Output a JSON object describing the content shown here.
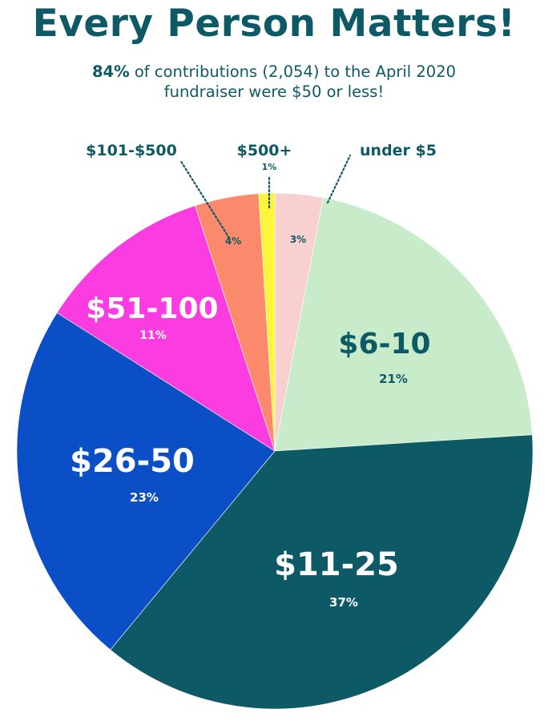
{
  "title": "Every Person Matters!",
  "subtitle": {
    "highlight": "84%",
    "line1_rest": " of contributions (2,054) to the April 2020",
    "line2": "fundraiser were $50 or less!"
  },
  "chart_data": {
    "type": "pie",
    "slices": [
      {
        "label": "under $5",
        "value": 3,
        "pct_label": "3%",
        "color": "#f8d0d0"
      },
      {
        "label": "$6-10",
        "value": 21,
        "pct_label": "21%",
        "color": "#c8ecca"
      },
      {
        "label": "$11-25",
        "value": 37,
        "pct_label": "37%",
        "color": "#0d5a66"
      },
      {
        "label": "$26-50",
        "value": 23,
        "pct_label": "23%",
        "color": "#0b4fc7"
      },
      {
        "label": "$51-100",
        "value": 11,
        "pct_label": "11%",
        "color": "#fa3ce1"
      },
      {
        "label": "$101-$500",
        "value": 4,
        "pct_label": "4%",
        "color": "#fb8a6c"
      },
      {
        "label": "$500+",
        "value": 1,
        "pct_label": "1%",
        "color": "#fcf53a"
      }
    ]
  }
}
